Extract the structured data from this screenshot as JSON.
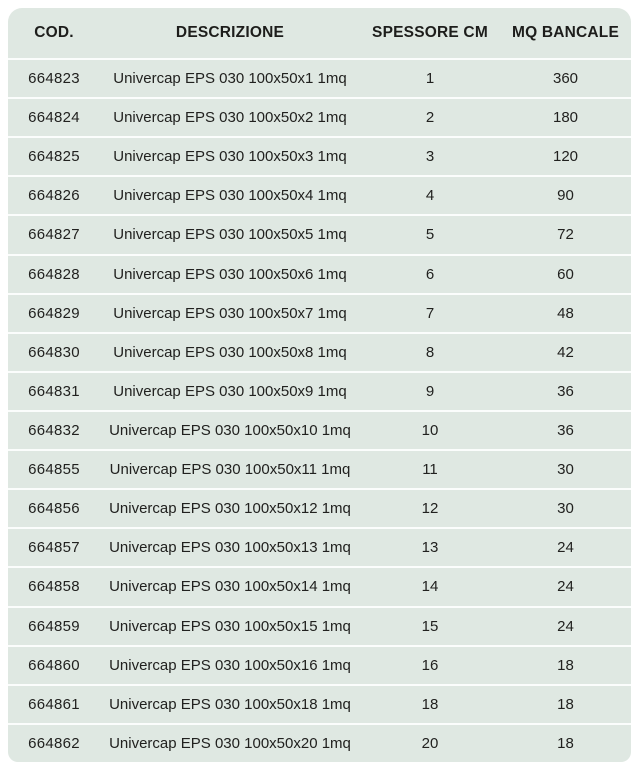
{
  "colors": {
    "page_bg": "#ffffff",
    "table_bg": "#dfe8e2",
    "separator": "#fbfdfc",
    "text": "#1d1d1b"
  },
  "table": {
    "headers": [
      {
        "key": "cod",
        "label": "COD."
      },
      {
        "key": "descrizione",
        "label": "DESCRIZIONE"
      },
      {
        "key": "spessore_cm",
        "label": "SPESSORE CM"
      },
      {
        "key": "mq_bancale",
        "label": "MQ BANCALE"
      }
    ],
    "rows": [
      {
        "cod": "664823",
        "descrizione": "Univercap EPS 030 100x50x1 1mq",
        "spessore_cm": "1",
        "mq_bancale": "360"
      },
      {
        "cod": "664824",
        "descrizione": "Univercap EPS 030 100x50x2 1mq",
        "spessore_cm": "2",
        "mq_bancale": "180"
      },
      {
        "cod": "664825",
        "descrizione": "Univercap EPS 030 100x50x3 1mq",
        "spessore_cm": "3",
        "mq_bancale": "120"
      },
      {
        "cod": "664826",
        "descrizione": "Univercap EPS 030 100x50x4 1mq",
        "spessore_cm": "4",
        "mq_bancale": "90"
      },
      {
        "cod": "664827",
        "descrizione": "Univercap EPS 030 100x50x5 1mq",
        "spessore_cm": "5",
        "mq_bancale": "72"
      },
      {
        "cod": "664828",
        "descrizione": "Univercap EPS 030 100x50x6 1mq",
        "spessore_cm": "6",
        "mq_bancale": "60"
      },
      {
        "cod": "664829",
        "descrizione": "Univercap EPS 030 100x50x7 1mq",
        "spessore_cm": "7",
        "mq_bancale": "48"
      },
      {
        "cod": "664830",
        "descrizione": "Univercap EPS 030 100x50x8 1mq",
        "spessore_cm": "8",
        "mq_bancale": "42"
      },
      {
        "cod": "664831",
        "descrizione": "Univercap EPS 030 100x50x9 1mq",
        "spessore_cm": "9",
        "mq_bancale": "36"
      },
      {
        "cod": "664832",
        "descrizione": "Univercap EPS 030 100x50x10 1mq",
        "spessore_cm": "10",
        "mq_bancale": "36"
      },
      {
        "cod": "664855",
        "descrizione": "Univercap EPS 030 100x50x11 1mq",
        "spessore_cm": "11",
        "mq_bancale": "30"
      },
      {
        "cod": "664856",
        "descrizione": "Univercap EPS 030 100x50x12 1mq",
        "spessore_cm": "12",
        "mq_bancale": "30"
      },
      {
        "cod": "664857",
        "descrizione": "Univercap EPS 030 100x50x13 1mq",
        "spessore_cm": "13",
        "mq_bancale": "24"
      },
      {
        "cod": "664858",
        "descrizione": "Univercap EPS 030 100x50x14 1mq",
        "spessore_cm": "14",
        "mq_bancale": "24"
      },
      {
        "cod": "664859",
        "descrizione": "Univercap EPS 030 100x50x15 1mq",
        "spessore_cm": "15",
        "mq_bancale": "24"
      },
      {
        "cod": "664860",
        "descrizione": "Univercap EPS 030 100x50x16 1mq",
        "spessore_cm": "16",
        "mq_bancale": "18"
      },
      {
        "cod": "664861",
        "descrizione": "Univercap EPS 030 100x50x18 1mq",
        "spessore_cm": "18",
        "mq_bancale": "18"
      },
      {
        "cod": "664862",
        "descrizione": "Univercap EPS 030 100x50x20 1mq",
        "spessore_cm": "20",
        "mq_bancale": "18"
      }
    ]
  }
}
